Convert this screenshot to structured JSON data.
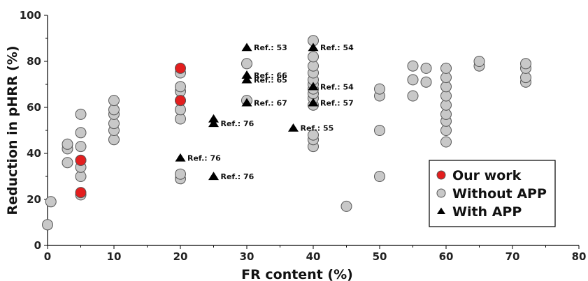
{
  "chart_data": {
    "type": "scatter",
    "xlabel": "FR content (%)",
    "ylabel": "Reduction in pHRR (%)",
    "xlim": [
      0,
      80
    ],
    "ylim": [
      0,
      100
    ],
    "xticks": [
      0,
      10,
      20,
      30,
      40,
      50,
      60,
      70,
      80
    ],
    "yticks": [
      0,
      20,
      40,
      60,
      80,
      100
    ],
    "grid": false,
    "legend_position": "bottom-right",
    "series": [
      {
        "name": "Without APP",
        "marker": "circle",
        "color": "#c8c8c8",
        "points": [
          [
            0,
            9
          ],
          [
            0.5,
            19
          ],
          [
            3,
            36
          ],
          [
            3,
            42
          ],
          [
            3,
            44
          ],
          [
            5,
            22
          ],
          [
            5,
            30
          ],
          [
            5,
            34
          ],
          [
            5,
            37
          ],
          [
            5,
            43
          ],
          [
            5,
            49
          ],
          [
            5,
            57
          ],
          [
            10,
            46
          ],
          [
            10,
            50
          ],
          [
            10,
            53
          ],
          [
            10,
            57
          ],
          [
            10,
            59
          ],
          [
            10,
            63
          ],
          [
            20,
            29
          ],
          [
            20,
            31
          ],
          [
            20,
            55
          ],
          [
            20,
            59
          ],
          [
            20,
            63
          ],
          [
            20,
            67
          ],
          [
            20,
            69
          ],
          [
            20,
            75
          ],
          [
            30,
            63
          ],
          [
            30,
            79
          ],
          [
            40,
            43
          ],
          [
            40,
            46
          ],
          [
            40,
            48
          ],
          [
            40,
            61
          ],
          [
            40,
            64
          ],
          [
            40,
            66
          ],
          [
            40,
            68
          ],
          [
            40,
            70
          ],
          [
            40,
            72
          ],
          [
            40,
            75
          ],
          [
            40,
            78
          ],
          [
            40,
            82
          ],
          [
            40,
            89
          ],
          [
            45,
            17
          ],
          [
            50,
            30
          ],
          [
            50,
            50
          ],
          [
            50,
            65
          ],
          [
            50,
            68
          ],
          [
            55,
            65
          ],
          [
            55,
            72
          ],
          [
            55,
            78
          ],
          [
            57,
            71
          ],
          [
            57,
            77
          ],
          [
            60,
            45
          ],
          [
            60,
            50
          ],
          [
            60,
            54
          ],
          [
            60,
            57
          ],
          [
            60,
            61
          ],
          [
            60,
            65
          ],
          [
            60,
            69
          ],
          [
            60,
            73
          ],
          [
            60,
            77
          ],
          [
            65,
            78
          ],
          [
            65,
            80
          ],
          [
            72,
            71
          ],
          [
            72,
            73
          ],
          [
            72,
            77
          ],
          [
            72,
            79
          ]
        ]
      },
      {
        "name": "Our work",
        "marker": "circle",
        "color": "#e31e1e",
        "points": [
          [
            5,
            23
          ],
          [
            5,
            37
          ],
          [
            20,
            63
          ],
          [
            20,
            77
          ]
        ]
      },
      {
        "name": "With APP",
        "marker": "triangle",
        "color": "#000000",
        "points": [
          {
            "x": 20,
            "y": 38,
            "label": "Ref.: 76"
          },
          {
            "x": 25,
            "y": 30,
            "label": "Ref.: 76"
          },
          {
            "x": 25,
            "y": 53,
            "label": "Ref.: 76"
          },
          {
            "x": 25,
            "y": 55,
            "label": ""
          },
          {
            "x": 30,
            "y": 62,
            "label": "Ref.: 67"
          },
          {
            "x": 30,
            "y": 72,
            "label": "Ref.: 65"
          },
          {
            "x": 30,
            "y": 74,
            "label": "Ref.: 66"
          },
          {
            "x": 30,
            "y": 86,
            "label": "Ref.: 53"
          },
          {
            "x": 37,
            "y": 51,
            "label": "Ref.: 55"
          },
          {
            "x": 40,
            "y": 62,
            "label": "Ref.: 57"
          },
          {
            "x": 40,
            "y": 69,
            "label": "Ref.: 54"
          },
          {
            "x": 40,
            "y": 86,
            "label": "Ref.: 54"
          }
        ]
      }
    ],
    "legend": [
      {
        "label": "Our work",
        "marker": "circle",
        "color": "#e31e1e"
      },
      {
        "label": "Without APP",
        "marker": "circle",
        "color": "#c8c8c8"
      },
      {
        "label": "With APP",
        "marker": "triangle",
        "color": "#000000"
      }
    ]
  }
}
